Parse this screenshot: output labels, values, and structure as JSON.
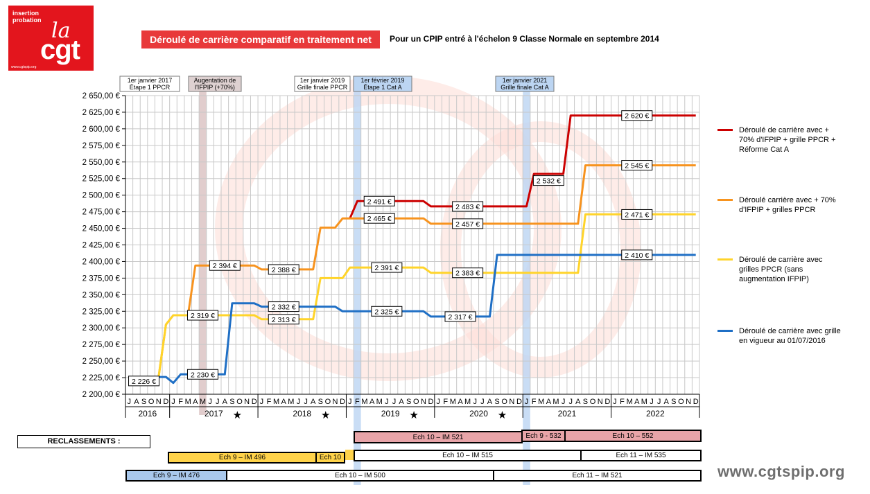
{
  "logo": {
    "line1": "insertion",
    "line2": "probation",
    "la": "la",
    "cgt": "cgt",
    "url": "www.cgtspip.org"
  },
  "header": {
    "title": "Déroulé de carrière comparatif en traitement net",
    "subtitle": "Pour un CPIP entré à l'échelon 9 Classe Normale en septembre 2014"
  },
  "colors": {
    "red": "#cc0000",
    "orange": "#f7931e",
    "yellow": "#ffd42a",
    "blue": "#1f6fc5",
    "title_bg": "#e8393a"
  },
  "chart_data": {
    "type": "line",
    "ylim": [
      2200,
      2650
    ],
    "yticks": [
      "2 200,00 €",
      "2 225,00 €",
      "2 250,00 €",
      "2 275,00 €",
      "2 300,00 €",
      "2 325,00 €",
      "2 350,00 €",
      "2 375,00 €",
      "2 400,00 €",
      "2 425,00 €",
      "2 450,00 €",
      "2 475,00 €",
      "2 500,00 €",
      "2 525,00 €",
      "2 550,00 €",
      "2 575,00 €",
      "2 600,00 €",
      "2 625,00 €",
      "2 650,00 €"
    ],
    "months": [
      "J",
      "A",
      "S",
      "O",
      "N",
      "D",
      "J",
      "F",
      "M",
      "A",
      "M",
      "J",
      "J",
      "A",
      "S",
      "O",
      "N",
      "D",
      "J",
      "F",
      "M",
      "A",
      "M",
      "J",
      "J",
      "A",
      "S",
      "O",
      "N",
      "D",
      "J",
      "F",
      "M",
      "A",
      "M",
      "J",
      "J",
      "A",
      "S",
      "O",
      "N",
      "D",
      "J",
      "F",
      "M",
      "A",
      "M",
      "J",
      "J",
      "A",
      "S",
      "O",
      "N",
      "D",
      "J",
      "F",
      "M",
      "A",
      "M",
      "J",
      "J",
      "A",
      "S",
      "O",
      "N",
      "D",
      "J",
      "F",
      "M",
      "A",
      "M",
      "J",
      "J",
      "A",
      "S",
      "O",
      "N",
      "D"
    ],
    "years": [
      {
        "label": "2016",
        "star": false
      },
      {
        "label": "2017",
        "star": true
      },
      {
        "label": "2018",
        "star": true
      },
      {
        "label": "2019",
        "star": true
      },
      {
        "label": "2020",
        "star": true
      },
      {
        "label": "2021",
        "star": false
      },
      {
        "label": "2022",
        "star": false
      }
    ],
    "annotations": [
      {
        "lines": [
          "1er janvier 2017",
          "Étape 1 PPCR"
        ]
      },
      {
        "lines": [
          "Augentation de",
          "l'IFPIP (+70%)"
        ]
      },
      {
        "lines": [
          "1er janvier 2019",
          "Grille finale PPCR"
        ]
      },
      {
        "lines": [
          "1er février 2019",
          "Étape 1 Cat A"
        ]
      },
      {
        "lines": [
          "1er janvier 2021",
          "Grille finale Cat A"
        ]
      }
    ],
    "series": [
      {
        "name": "Déroulé de carrière avec + 70% d'IFPIP + grille PPCR + Réforme Cat A",
        "color": "#cc0000",
        "points": [
          [
            30,
            2465
          ],
          [
            31,
            2491
          ],
          [
            40,
            2491
          ],
          [
            41,
            2483
          ],
          [
            54,
            2483
          ],
          [
            55,
            2532
          ],
          [
            59,
            2532
          ],
          [
            60,
            2620
          ],
          [
            77,
            2620
          ]
        ],
        "labels": [
          {
            "text": "2 491 €",
            "x": 34,
            "y": 2491
          },
          {
            "text": "2 483 €",
            "x": 46,
            "y": 2483
          },
          {
            "text": "2 532 €",
            "x": 57,
            "y": 2522
          },
          {
            "text": "2 620 €",
            "x": 69,
            "y": 2620
          }
        ]
      },
      {
        "name": "Déroulé carrière avec + 70% d'IFPIP + grilles PPCR",
        "color": "#f7931e",
        "points": [
          [
            4,
            2226
          ],
          [
            5,
            2305
          ],
          [
            6,
            2319
          ],
          [
            8,
            2319
          ],
          [
            9,
            2394
          ],
          [
            17,
            2394
          ],
          [
            18,
            2388
          ],
          [
            25,
            2388
          ],
          [
            26,
            2451
          ],
          [
            28,
            2451
          ],
          [
            29,
            2465
          ],
          [
            40,
            2465
          ],
          [
            41,
            2457
          ],
          [
            61,
            2457
          ],
          [
            62,
            2545
          ],
          [
            77,
            2545
          ]
        ],
        "labels": [
          {
            "text": "2 394 €",
            "x": 13,
            "y": 2394
          },
          {
            "text": "2 388 €",
            "x": 21,
            "y": 2388
          },
          {
            "text": "2 465 €",
            "x": 34,
            "y": 2465
          },
          {
            "text": "2 457 €",
            "x": 46,
            "y": 2457
          },
          {
            "text": "2 545 €",
            "x": 69,
            "y": 2545
          }
        ]
      },
      {
        "name": "Déroulé de carrière avec grilles PPCR (sans augmentation IFPIP)",
        "color": "#ffd42a",
        "points": [
          [
            4,
            2226
          ],
          [
            5,
            2305
          ],
          [
            6,
            2319
          ],
          [
            17,
            2319
          ],
          [
            18,
            2313
          ],
          [
            25,
            2313
          ],
          [
            26,
            2375
          ],
          [
            29,
            2375
          ],
          [
            30,
            2391
          ],
          [
            40,
            2391
          ],
          [
            41,
            2383
          ],
          [
            61,
            2383
          ],
          [
            62,
            2471
          ],
          [
            77,
            2471
          ]
        ],
        "labels": [
          {
            "text": "2 319 €",
            "x": 10,
            "y": 2319
          },
          {
            "text": "2 313 €",
            "x": 21,
            "y": 2313
          },
          {
            "text": "2 391 €",
            "x": 35,
            "y": 2391
          },
          {
            "text": "2 383 €",
            "x": 46,
            "y": 2383
          },
          {
            "text": "2 471 €",
            "x": 69,
            "y": 2471
          }
        ]
      },
      {
        "name": "Déroulé de carrière avec grille en vigueur au 01/07/2016",
        "color": "#1f6fc5",
        "points": [
          [
            0,
            2226
          ],
          [
            5,
            2226
          ],
          [
            6,
            2217
          ],
          [
            7,
            2230
          ],
          [
            13,
            2230
          ],
          [
            14,
            2337
          ],
          [
            17,
            2337
          ],
          [
            18,
            2332
          ],
          [
            28,
            2332
          ],
          [
            29,
            2325
          ],
          [
            40,
            2325
          ],
          [
            41,
            2317
          ],
          [
            49,
            2317
          ],
          [
            50,
            2410
          ],
          [
            77,
            2410
          ]
        ],
        "labels": [
          {
            "text": "2 226 €",
            "x": 2,
            "y": 2220
          },
          {
            "text": "2 230 €",
            "x": 10,
            "y": 2230
          },
          {
            "text": "2 332 €",
            "x": 21,
            "y": 2332
          },
          {
            "text": "2 325 €",
            "x": 35,
            "y": 2325
          },
          {
            "text": "2 317 €",
            "x": 45,
            "y": 2317
          },
          {
            "text": "2 410 €",
            "x": 69,
            "y": 2410
          }
        ]
      }
    ]
  },
  "legend": [
    {
      "text": "Déroulé de carrière avec  + 70% d'IFPIP + grille PPCR + Réforme Cat A",
      "color": "#cc0000"
    },
    {
      "text": "Déroulé carrière avec  + 70% d'IFPIP + grilles PPCR",
      "color": "#f7931e"
    },
    {
      "text": "Déroulé de carrière avec grilles PPCR (sans augmentation IFPIP)",
      "color": "#ffd42a"
    },
    {
      "text": "Déroulé de carrière avec grille en vigueur au 01/07/2016",
      "color": "#1f6fc5"
    }
  ],
  "reclassements": {
    "label": "RECLASSEMENTS :",
    "row1": [
      {
        "text": "Ech 10 – IM 521"
      },
      {
        "text": "Ech 9 - 532"
      },
      {
        "text": "Ech 10 – 552"
      }
    ],
    "row2": [
      {
        "text": "Ech 9 – IM 496"
      },
      {
        "text": "Ech 10"
      },
      {
        "text": ""
      },
      {
        "text": "Ech 10 – IM 515"
      },
      {
        "text": "Ech 11 – IM  535"
      }
    ],
    "row3": [
      {
        "text": "Ech 9 – IM 476"
      },
      {
        "text": "Ech 10 – IM 500"
      },
      {
        "text": "Ech 11 – IM  521"
      }
    ]
  },
  "watermark": "www.cgtspip.org"
}
